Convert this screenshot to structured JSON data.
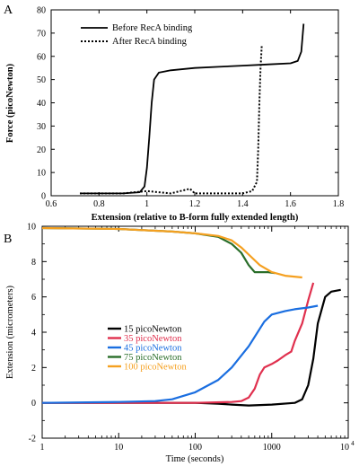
{
  "chart_data": [
    {
      "panel": "A",
      "type": "line",
      "xlabel": "Extension (relative to B-form fully extended length)",
      "ylabel": "Force (picoNewton)",
      "xlim": [
        0.6,
        1.8
      ],
      "ylim": [
        0,
        80
      ],
      "xticks": [
        "0.6",
        "0.8",
        "1",
        "1.2",
        "1.4",
        "1.6",
        "1.8"
      ],
      "yticks": [
        "0",
        "10",
        "20",
        "30",
        "40",
        "50",
        "60",
        "70",
        "80"
      ],
      "legend_position": "top-left",
      "series": [
        {
          "name": "Before RecA binding",
          "style": "solid",
          "color": "#000000",
          "x": [
            0.72,
            0.8,
            0.9,
            0.97,
            0.99,
            1.0,
            1.01,
            1.02,
            1.03,
            1.05,
            1.1,
            1.2,
            1.3,
            1.4,
            1.5,
            1.6,
            1.63,
            1.645,
            1.65,
            1.655
          ],
          "y": [
            1,
            1,
            1,
            1.5,
            4,
            12,
            25,
            40,
            50,
            53,
            54,
            55,
            55.5,
            56,
            56.5,
            57,
            58,
            62,
            68,
            74
          ]
        },
        {
          "name": "After RecA binding",
          "style": "dotted",
          "color": "#000000",
          "x": [
            0.72,
            0.9,
            1.0,
            1.1,
            1.18,
            1.2,
            1.3,
            1.4,
            1.44,
            1.46,
            1.465,
            1.47,
            1.475,
            1.48
          ],
          "y": [
            1,
            1,
            2,
            1,
            3,
            1,
            1,
            1,
            2,
            6,
            20,
            40,
            55,
            65
          ]
        }
      ]
    },
    {
      "panel": "B",
      "type": "line",
      "xlabel": "Time  (seconds)",
      "ylabel": "Extension   (micrometers)",
      "xscale": "log",
      "xlim": [
        1,
        10000
      ],
      "ylim": [
        -2,
        10
      ],
      "xticks": [
        "1",
        "10",
        "100",
        "1000"
      ],
      "xtick_last": {
        "base": "10",
        "exp": "4"
      },
      "yticks": [
        "-2",
        "0",
        "2",
        "4",
        "6",
        "8",
        "10"
      ],
      "legend_position": "center-left",
      "series": [
        {
          "name": "15  picoNewton",
          "color": "#000000",
          "x": [
            1,
            10,
            100,
            200,
            300,
            500,
            1000,
            2000,
            2500,
            3000,
            3500,
            4000,
            5000,
            6000,
            8000
          ],
          "y": [
            0,
            0,
            0,
            -0.05,
            -0.1,
            -0.15,
            -0.1,
            0,
            0.2,
            1.0,
            2.5,
            4.5,
            6.0,
            6.3,
            6.4
          ]
        },
        {
          "name": "35  picoNewton",
          "color": "#e0304e",
          "x": [
            1,
            10,
            100,
            300,
            400,
            500,
            600,
            700,
            800,
            1000,
            1200,
            1500,
            1800,
            2000,
            2500,
            3000,
            3500
          ],
          "y": [
            0,
            0,
            0,
            0.05,
            0.1,
            0.3,
            0.8,
            1.6,
            2.0,
            2.2,
            2.4,
            2.7,
            2.9,
            3.5,
            4.5,
            5.8,
            6.8
          ]
        },
        {
          "name": "45  picoNewton",
          "color": "#1a6ee0",
          "x": [
            1,
            10,
            30,
            50,
            100,
            200,
            300,
            500,
            800,
            1000,
            1500,
            2000,
            3000,
            4000
          ],
          "y": [
            0,
            0.05,
            0.1,
            0.2,
            0.6,
            1.3,
            2.0,
            3.2,
            4.6,
            5.0,
            5.2,
            5.3,
            5.4,
            5.5
          ]
        },
        {
          "name": "75  picoNewton",
          "color": "#2a6e2a",
          "x": [
            1,
            10,
            50,
            100,
            200,
            300,
            400,
            500,
            600,
            700,
            900,
            1100
          ],
          "y": [
            9.9,
            9.85,
            9.7,
            9.6,
            9.4,
            9.0,
            8.5,
            7.8,
            7.4,
            7.4,
            7.4,
            7.35
          ]
        },
        {
          "name": "100  picoNewton",
          "color": "#f5a020",
          "x": [
            1,
            10,
            50,
            100,
            200,
            300,
            400,
            500,
            700,
            1000,
            1500,
            2500
          ],
          "y": [
            9.9,
            9.85,
            9.7,
            9.6,
            9.45,
            9.2,
            8.8,
            8.4,
            7.8,
            7.4,
            7.2,
            7.1
          ]
        }
      ]
    }
  ]
}
